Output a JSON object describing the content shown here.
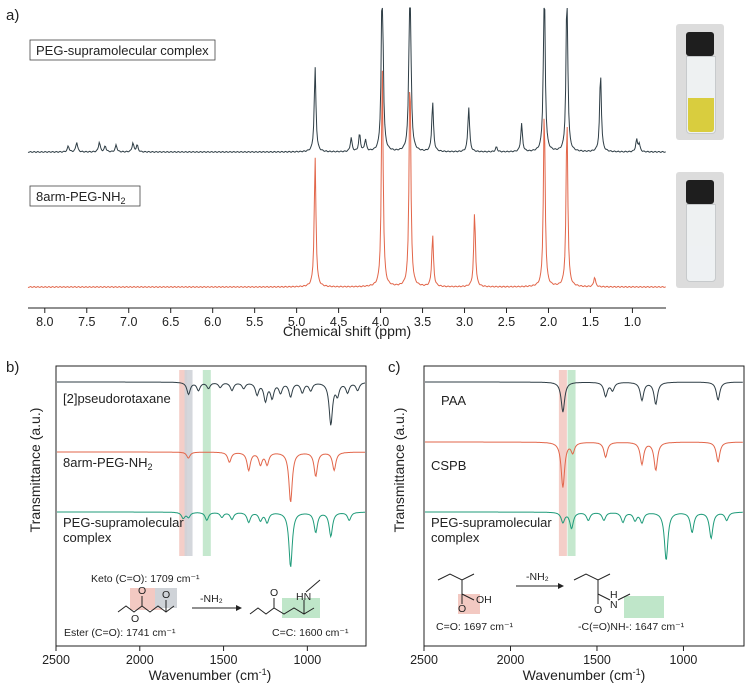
{
  "colors": {
    "dark": "#2f3e46",
    "orange": "#e2664a",
    "teal": "#1f9b7a",
    "red_band": "#f3c9c2",
    "grey_band": "#cfd3d8",
    "green_band": "#bfe6c9",
    "yellow_solution": "#d9cd3e",
    "clear_solution": "#eef1f3"
  },
  "chart_data": [
    {
      "panel": "a)",
      "type": "line",
      "xlabel": "Chemical shift (ppm)",
      "xlim": [
        8.2,
        0.6
      ],
      "xticks": [
        "8.0",
        "7.5",
        "7.0",
        "6.5",
        "6.0",
        "5.5",
        "5.0",
        "4.5",
        "4.0",
        "3.5",
        "3.0",
        "2.5",
        "2.0",
        "1.5",
        "1.0"
      ],
      "series": [
        {
          "name": "PEG-supramolecular complex",
          "color": "dark",
          "peaks": [
            [
              7.72,
              6
            ],
            [
              7.62,
              10
            ],
            [
              7.35,
              10
            ],
            [
              7.28,
              6
            ],
            [
              7.15,
              7
            ],
            [
              6.95,
              9
            ],
            [
              6.9,
              7
            ],
            [
              4.78,
              85
            ],
            [
              4.35,
              14
            ],
            [
              4.25,
              18
            ],
            [
              4.18,
              12
            ],
            [
              3.98,
              200
            ],
            [
              3.65,
              220
            ],
            [
              3.38,
              50
            ],
            [
              2.95,
              45
            ],
            [
              2.62,
              5
            ],
            [
              2.32,
              28
            ],
            [
              2.05,
              180
            ],
            [
              1.78,
              170
            ],
            [
              1.38,
              80
            ],
            [
              0.95,
              12
            ],
            [
              0.92,
              8
            ]
          ]
        },
        {
          "name": "8arm-PEG-NH2",
          "color": "orange",
          "peaks": [
            [
              4.78,
              130
            ],
            [
              3.98,
              220
            ],
            [
              3.65,
              220
            ],
            [
              3.38,
              52
            ],
            [
              2.88,
              75
            ],
            [
              2.05,
              180
            ],
            [
              1.78,
              170
            ],
            [
              1.45,
              10
            ]
          ]
        }
      ],
      "images": [
        "yellow solution vial",
        "clear solution vial"
      ]
    },
    {
      "panel": "b)",
      "type": "line",
      "xlabel": "Wavenumber (cm-1)",
      "ylabel": "Transmittance (a.u.)",
      "xlim": [
        2500,
        650
      ],
      "xticks": [
        "2500",
        "2000",
        "1500",
        "1000"
      ],
      "series": [
        {
          "name": "[2]pseudorotaxane",
          "color": "dark",
          "bands": [
            [
              1709,
              12
            ],
            [
              1650,
              8
            ],
            [
              1590,
              6
            ],
            [
              1520,
              5
            ],
            [
              1450,
              8
            ],
            [
              1380,
              6
            ],
            [
              1300,
              12
            ],
            [
              1250,
              18
            ],
            [
              1210,
              15
            ],
            [
              1160,
              10
            ],
            [
              1100,
              14
            ],
            [
              1030,
              10
            ],
            [
              980,
              8
            ],
            [
              860,
              42
            ],
            [
              820,
              12
            ],
            [
              760,
              10
            ],
            [
              700,
              8
            ]
          ]
        },
        {
          "name": "8arm-PEG-NH2",
          "color": "orange",
          "bands": [
            [
              1710,
              6
            ],
            [
              1465,
              10
            ],
            [
              1350,
              18
            ],
            [
              1280,
              12
            ],
            [
              1240,
              12
            ],
            [
              1100,
              50
            ],
            [
              950,
              24
            ],
            [
              840,
              18
            ]
          ]
        },
        {
          "name": "PEG-supramolecular complex",
          "color": "teal",
          "bands": [
            [
              1741,
              6
            ],
            [
              1709,
              5
            ],
            [
              1600,
              8
            ],
            [
              1510,
              5
            ],
            [
              1450,
              7
            ],
            [
              1350,
              10
            ],
            [
              1280,
              8
            ],
            [
              1240,
              10
            ],
            [
              1100,
              55
            ],
            [
              950,
              20
            ],
            [
              860,
              24
            ],
            [
              750,
              8
            ]
          ]
        }
      ],
      "highlights": [
        [
          1741,
          "red_band"
        ],
        [
          1709,
          "grey_band"
        ],
        [
          1600,
          "green_band"
        ]
      ],
      "annotations": {
        "keto": "Keto (C=O): 1709 cm⁻¹",
        "ester": "Ester (C=O): 1741 cm⁻¹",
        "cc": "C=C: 1600 cm⁻¹",
        "reagent": "-NH₂",
        "hn": "HN",
        "o1": "O",
        "o2": "O",
        "o3": "O",
        "o4": "O"
      }
    },
    {
      "panel": "c)",
      "type": "line",
      "xlabel": "Wavenumber (cm-1)",
      "ylabel": "Transmittance (a.u.)",
      "xlim": [
        2500,
        650
      ],
      "xticks": [
        "2500",
        "2000",
        "1500",
        "1000"
      ],
      "series": [
        {
          "name": "PAA",
          "color": "dark",
          "bands": [
            [
              1697,
              30
            ],
            [
              1450,
              14
            ],
            [
              1410,
              8
            ],
            [
              1240,
              18
            ],
            [
              1160,
              22
            ],
            [
              800,
              18
            ]
          ]
        },
        {
          "name": "CSPB",
          "color": "orange",
          "bands": [
            [
              1697,
              45
            ],
            [
              1640,
              10
            ],
            [
              1450,
              15
            ],
            [
              1240,
              22
            ],
            [
              1160,
              28
            ],
            [
              800,
              20
            ]
          ]
        },
        {
          "name": "PEG-supramolecular complex",
          "color": "teal",
          "bands": [
            [
              1697,
              10
            ],
            [
              1647,
              16
            ],
            [
              1550,
              8
            ],
            [
              1460,
              8
            ],
            [
              1350,
              10
            ],
            [
              1280,
              8
            ],
            [
              1240,
              10
            ],
            [
              1100,
              48
            ],
            [
              950,
              20
            ],
            [
              840,
              26
            ],
            [
              750,
              8
            ]
          ]
        }
      ],
      "highlights": [
        [
          1697,
          "red_band"
        ],
        [
          1647,
          "green_band"
        ]
      ],
      "annotations": {
        "co": "C=O: 1697 cm⁻¹",
        "amide": "-C(=O)NH-: 1647 cm⁻¹",
        "reagent": "-NH₂",
        "oh": "OH",
        "o1": "O",
        "o2": "O",
        "h": "H",
        "n": "N"
      }
    }
  ]
}
